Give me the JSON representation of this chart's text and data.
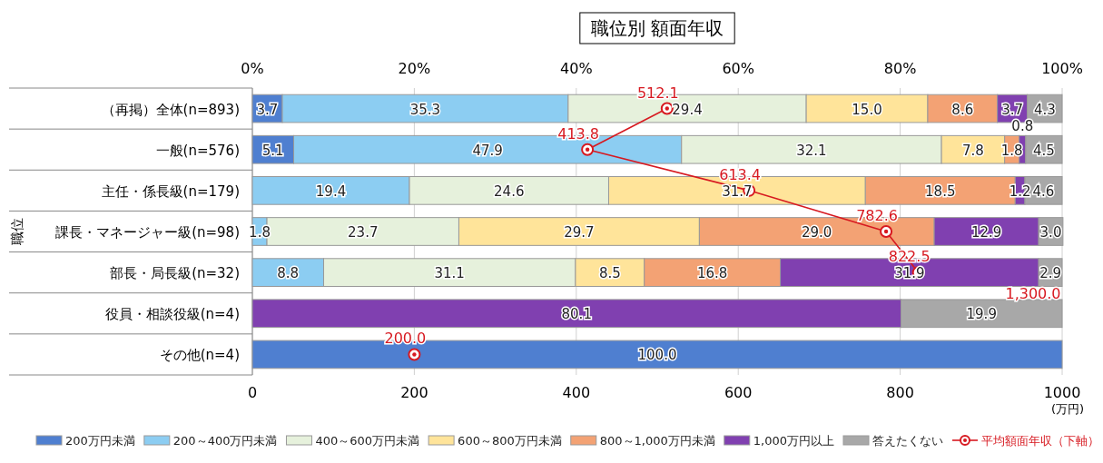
{
  "chart_data": {
    "type": "bar",
    "orientation": "horizontal",
    "stacked": true,
    "title": "職位別 額面年収",
    "ylabel": "職位",
    "xlabel": "(万円)",
    "categories": [
      "（再掲）全体(n=893)",
      "一般(n=576)",
      "主任・係長級(n=179)",
      "課長・マネージャー級(n=98)",
      "部長・局長級(n=32)",
      "役員・相談役級(n=4)",
      "その他(n=4)"
    ],
    "xlim": [
      0,
      1000
    ],
    "xticks": [
      0,
      200,
      400,
      600,
      800,
      1000
    ],
    "x2lim": [
      0,
      100
    ],
    "x2ticks": [
      {
        "value": 0,
        "label": "0%"
      },
      {
        "value": 20,
        "label": "20%"
      },
      {
        "value": 40,
        "label": "40%"
      },
      {
        "value": 60,
        "label": "60%"
      },
      {
        "value": 80,
        "label": "80%"
      },
      {
        "value": 100,
        "label": "100%"
      }
    ],
    "grid": "x",
    "legend": "bottom",
    "annotations": [
      "1,300.0"
    ],
    "series": [
      {
        "name": "200万円未満",
        "color": "#4f7fd0",
        "axis": "x2",
        "values": [
          3.7,
          5.1,
          null,
          null,
          null,
          null,
          100.0
        ],
        "value_labels": [
          "3.7",
          "5.1",
          null,
          null,
          null,
          null,
          "100.0"
        ]
      },
      {
        "name": "200～400万円未満",
        "color": "#8ccdf2",
        "axis": "x2",
        "values": [
          35.3,
          47.9,
          19.4,
          1.8,
          8.8,
          null,
          null
        ],
        "value_labels": [
          "35.3",
          "47.9",
          "19.4",
          "1.8",
          "8.8",
          null,
          null
        ]
      },
      {
        "name": "400～600万円未満",
        "color": "#e6f1dc",
        "axis": "x2",
        "values": [
          29.4,
          32.1,
          24.6,
          23.7,
          31.1,
          null,
          null
        ],
        "value_labels": [
          "29.4",
          "32.1",
          "24.6",
          "23.7",
          "31.1",
          null,
          null
        ]
      },
      {
        "name": "600～800万円未満",
        "color": "#ffe49a",
        "axis": "x2",
        "values": [
          15.0,
          7.8,
          31.7,
          29.7,
          8.5,
          null,
          null
        ],
        "value_labels": [
          "15.0",
          "7.8",
          "31.7",
          "29.7",
          "8.5",
          null,
          null
        ]
      },
      {
        "name": "800～1,000万円未満",
        "color": "#f3a274",
        "axis": "x2",
        "values": [
          8.6,
          1.8,
          18.5,
          29.0,
          16.8,
          null,
          null
        ],
        "value_labels": [
          "8.6",
          "1.8",
          "18.5",
          "29.0",
          "16.8",
          null,
          null
        ]
      },
      {
        "name": "1,000万円以上",
        "color": "#8040b0",
        "axis": "x2",
        "values": [
          3.7,
          0.8,
          1.2,
          12.9,
          31.9,
          80.1,
          null
        ],
        "value_labels": [
          "3.7",
          "0.8",
          "1.2",
          "12.9",
          "31.9",
          "80.1",
          null
        ]
      },
      {
        "name": "答えたくない",
        "color": "#a8a8a8",
        "axis": "x2",
        "values": [
          4.3,
          4.5,
          4.6,
          3.0,
          2.9,
          19.9,
          null
        ],
        "value_labels": [
          "4.3",
          "4.5",
          "4.6",
          "3.0",
          "2.9",
          "19.9",
          null
        ]
      },
      {
        "name": "平均額面年収（下軸）",
        "type": "line",
        "color": "#d71920",
        "marker": "circle",
        "values": [
          512.1,
          413.8,
          613.4,
          782.6,
          822.5,
          null,
          200.0
        ],
        "value_labels": [
          "512.1",
          "413.8",
          "613.4",
          "782.6",
          "822.5",
          null,
          "200.0"
        ]
      }
    ]
  }
}
